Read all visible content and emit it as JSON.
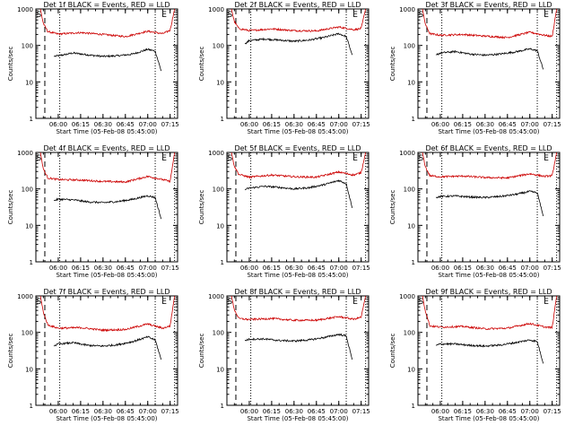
{
  "figure": {
    "ylabel": "Counts/sec",
    "xlabel": "Start Time (05-Feb-08 05:45:00)",
    "marker_s": "S",
    "marker_e": "E"
  },
  "chart_data": [
    {
      "type": "line",
      "title": "Det 1f BLACK = Events, RED = LLD",
      "x_ticks": [
        "06:00",
        "06:15",
        "06:30",
        "06:45",
        "07:00",
        "07:15"
      ],
      "y_ticks": [
        "1",
        "10",
        "100",
        "1000"
      ],
      "ylog": true,
      "ylim": [
        1,
        1000
      ],
      "series": [
        {
          "name": "BLACK = Events",
          "color": "#000000",
          "x": [
            "05:57",
            "06:00",
            "06:10",
            "06:20",
            "06:30",
            "06:40",
            "06:50",
            "07:00",
            "07:05",
            "07:09"
          ],
          "values": [
            50,
            52,
            62,
            55,
            50,
            52,
            58,
            78,
            70,
            20
          ]
        },
        {
          "name": "RED = LLD",
          "color": "#cc0000",
          "x": [
            "05:48",
            "05:50",
            "05:53",
            "06:00",
            "06:15",
            "06:30",
            "06:45",
            "07:00",
            "07:10",
            "07:15",
            "07:18"
          ],
          "values": [
            1000,
            400,
            240,
            205,
            225,
            200,
            175,
            245,
            210,
            260,
            1000
          ]
        }
      ]
    },
    {
      "type": "line",
      "title": "Det 2f BLACK = Events, RED = LLD",
      "x_ticks": [
        "06:00",
        "06:15",
        "06:30",
        "06:45",
        "07:00",
        "07:15"
      ],
      "y_ticks": [
        "1",
        "10",
        "100",
        "1000"
      ],
      "ylog": true,
      "ylim": [
        1,
        1000
      ],
      "series": [
        {
          "name": "BLACK = Events",
          "color": "#000000",
          "x": [
            "05:57",
            "06:00",
            "06:10",
            "06:20",
            "06:30",
            "06:40",
            "06:50",
            "07:00",
            "07:05",
            "07:09"
          ],
          "values": [
            110,
            135,
            150,
            140,
            130,
            140,
            165,
            210,
            175,
            55
          ]
        },
        {
          "name": "RED = LLD",
          "color": "#cc0000",
          "x": [
            "05:48",
            "05:50",
            "05:53",
            "06:00",
            "06:15",
            "06:30",
            "06:45",
            "07:00",
            "07:10",
            "07:15",
            "07:18"
          ],
          "values": [
            1000,
            450,
            290,
            255,
            285,
            255,
            250,
            320,
            270,
            290,
            1000
          ]
        }
      ]
    },
    {
      "type": "line",
      "title": "Det 3f BLACK = Events, RED = LLD",
      "x_ticks": [
        "06:00",
        "06:15",
        "06:30",
        "06:45",
        "07:00",
        "07:15"
      ],
      "y_ticks": [
        "1",
        "10",
        "100",
        "1000"
      ],
      "ylog": true,
      "ylim": [
        1,
        1000
      ],
      "series": [
        {
          "name": "BLACK = Events",
          "color": "#000000",
          "x": [
            "05:57",
            "06:00",
            "06:10",
            "06:20",
            "06:30",
            "06:40",
            "06:50",
            "07:00",
            "07:05",
            "07:09"
          ],
          "values": [
            55,
            62,
            68,
            58,
            54,
            58,
            66,
            80,
            72,
            22
          ]
        },
        {
          "name": "RED = LLD",
          "color": "#cc0000",
          "x": [
            "05:48",
            "05:50",
            "05:53",
            "06:00",
            "06:15",
            "06:30",
            "06:45",
            "07:00",
            "07:10",
            "07:15",
            "07:18"
          ],
          "values": [
            1000,
            380,
            210,
            190,
            200,
            180,
            165,
            230,
            190,
            175,
            1000
          ]
        }
      ]
    },
    {
      "type": "line",
      "title": "Det 4f BLACK = Events, RED = LLD",
      "x_ticks": [
        "06:00",
        "06:15",
        "06:30",
        "06:45",
        "07:00",
        "07:15"
      ],
      "y_ticks": [
        "1",
        "10",
        "100",
        "1000"
      ],
      "ylog": true,
      "ylim": [
        1,
        1000
      ],
      "series": [
        {
          "name": "BLACK = Events",
          "color": "#000000",
          "x": [
            "05:57",
            "06:00",
            "06:10",
            "06:20",
            "06:30",
            "06:40",
            "06:50",
            "07:00",
            "07:05",
            "07:09"
          ],
          "values": [
            48,
            52,
            50,
            44,
            42,
            45,
            52,
            65,
            58,
            15
          ]
        },
        {
          "name": "RED = LLD",
          "color": "#cc0000",
          "x": [
            "05:48",
            "05:50",
            "05:53",
            "06:00",
            "06:15",
            "06:30",
            "06:45",
            "07:00",
            "07:10",
            "07:15",
            "07:18"
          ],
          "values": [
            1000,
            350,
            200,
            180,
            175,
            160,
            155,
            220,
            180,
            160,
            1000
          ]
        }
      ]
    },
    {
      "type": "line",
      "title": "Det 5f BLACK = Events, RED = LLD",
      "x_ticks": [
        "06:00",
        "06:15",
        "06:30",
        "06:45",
        "07:00",
        "07:15"
      ],
      "y_ticks": [
        "1",
        "10",
        "100",
        "1000"
      ],
      "ylog": true,
      "ylim": [
        1,
        1000
      ],
      "series": [
        {
          "name": "BLACK = Events",
          "color": "#000000",
          "x": [
            "05:57",
            "06:00",
            "06:10",
            "06:20",
            "06:30",
            "06:40",
            "06:50",
            "07:00",
            "07:05",
            "07:09"
          ],
          "values": [
            95,
            105,
            118,
            110,
            100,
            108,
            130,
            170,
            140,
            30
          ]
        },
        {
          "name": "RED = LLD",
          "color": "#cc0000",
          "x": [
            "05:48",
            "05:50",
            "05:53",
            "06:00",
            "06:15",
            "06:30",
            "06:45",
            "07:00",
            "07:10",
            "07:15",
            "07:18"
          ],
          "values": [
            1000,
            420,
            250,
            210,
            240,
            215,
            210,
            290,
            240,
            280,
            1000
          ]
        }
      ]
    },
    {
      "type": "line",
      "title": "Det 6f BLACK = Events, RED = LLD",
      "x_ticks": [
        "06:00",
        "06:15",
        "06:30",
        "06:45",
        "07:00",
        "07:15"
      ],
      "y_ticks": [
        "1",
        "10",
        "100",
        "1000"
      ],
      "ylog": true,
      "ylim": [
        1,
        1000
      ],
      "series": [
        {
          "name": "BLACK = Events",
          "color": "#000000",
          "x": [
            "05:57",
            "06:00",
            "06:10",
            "06:20",
            "06:30",
            "06:40",
            "06:50",
            "07:00",
            "07:05",
            "07:09"
          ],
          "values": [
            58,
            62,
            64,
            60,
            58,
            62,
            70,
            85,
            78,
            18
          ]
        },
        {
          "name": "RED = LLD",
          "color": "#cc0000",
          "x": [
            "05:48",
            "05:50",
            "05:53",
            "06:00",
            "06:15",
            "06:30",
            "06:45",
            "07:00",
            "07:10",
            "07:15",
            "07:18"
          ],
          "values": [
            1000,
            400,
            230,
            215,
            225,
            205,
            200,
            260,
            220,
            230,
            1000
          ]
        }
      ]
    },
    {
      "type": "line",
      "title": "Det 7f BLACK = Events, RED = LLD",
      "x_ticks": [
        "06:00",
        "06:15",
        "06:30",
        "06:45",
        "07:00",
        "07:15"
      ],
      "y_ticks": [
        "1",
        "10",
        "100",
        "1000"
      ],
      "ylog": true,
      "ylim": [
        1,
        1000
      ],
      "series": [
        {
          "name": "BLACK = Events",
          "color": "#000000",
          "x": [
            "05:57",
            "06:00",
            "06:10",
            "06:20",
            "06:30",
            "06:40",
            "06:50",
            "07:00",
            "07:05",
            "07:09"
          ],
          "values": [
            42,
            48,
            52,
            44,
            42,
            46,
            56,
            75,
            62,
            18
          ]
        },
        {
          "name": "RED = LLD",
          "color": "#cc0000",
          "x": [
            "05:48",
            "05:50",
            "05:53",
            "06:00",
            "06:15",
            "06:30",
            "06:45",
            "07:00",
            "07:10",
            "07:15",
            "07:18"
          ],
          "values": [
            1000,
            360,
            160,
            130,
            135,
            115,
            120,
            170,
            130,
            150,
            1000
          ]
        }
      ]
    },
    {
      "type": "line",
      "title": "Det 8f BLACK = Events, RED = LLD",
      "x_ticks": [
        "06:00",
        "06:15",
        "06:30",
        "06:45",
        "07:00",
        "07:15"
      ],
      "y_ticks": [
        "1",
        "10",
        "100",
        "1000"
      ],
      "ylog": true,
      "ylim": [
        1,
        1000
      ],
      "series": [
        {
          "name": "BLACK = Events",
          "color": "#000000",
          "x": [
            "05:57",
            "06:00",
            "06:10",
            "06:20",
            "06:30",
            "06:40",
            "06:50",
            "07:00",
            "07:05",
            "07:09"
          ],
          "values": [
            60,
            65,
            66,
            60,
            58,
            62,
            72,
            88,
            80,
            18
          ]
        },
        {
          "name": "RED = LLD",
          "color": "#cc0000",
          "x": [
            "05:48",
            "05:50",
            "05:53",
            "06:00",
            "06:15",
            "06:30",
            "06:45",
            "07:00",
            "07:10",
            "07:15",
            "07:18"
          ],
          "values": [
            1000,
            420,
            240,
            225,
            240,
            215,
            215,
            270,
            230,
            260,
            1000
          ]
        }
      ]
    },
    {
      "type": "line",
      "title": "Det 9f BLACK = Events, RED = LLD",
      "x_ticks": [
        "06:00",
        "06:15",
        "06:30",
        "06:45",
        "07:00",
        "07:15"
      ],
      "y_ticks": [
        "1",
        "10",
        "100",
        "1000"
      ],
      "ylog": true,
      "ylim": [
        1,
        1000
      ],
      "series": [
        {
          "name": "BLACK = Events",
          "color": "#000000",
          "x": [
            "05:57",
            "06:00",
            "06:10",
            "06:20",
            "06:30",
            "06:40",
            "06:50",
            "07:00",
            "07:05",
            "07:09"
          ],
          "values": [
            44,
            48,
            48,
            44,
            42,
            45,
            52,
            62,
            56,
            14
          ]
        },
        {
          "name": "RED = LLD",
          "color": "#cc0000",
          "x": [
            "05:48",
            "05:50",
            "05:53",
            "06:00",
            "06:15",
            "06:30",
            "06:45",
            "07:00",
            "07:10",
            "07:15",
            "07:18"
          ],
          "values": [
            1000,
            380,
            150,
            140,
            145,
            125,
            130,
            175,
            140,
            135,
            1000
          ]
        }
      ]
    }
  ]
}
